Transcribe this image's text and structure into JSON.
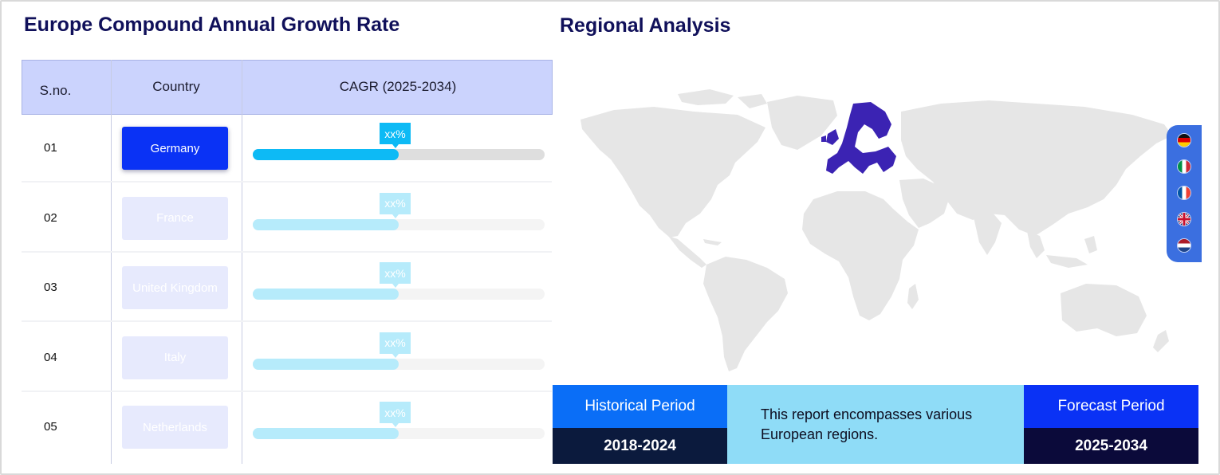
{
  "left": {
    "title": "Europe Compound Annual Growth Rate",
    "columns": [
      "S.no.",
      "Country",
      "CAGR (2025-2034)"
    ],
    "rows": [
      {
        "sno": "01",
        "country": "Germany",
        "cagr_label": "xx%",
        "progress": 0.5,
        "active": true
      },
      {
        "sno": "02",
        "country": "France",
        "cagr_label": "xx%",
        "progress": 0.5,
        "active": false
      },
      {
        "sno": "03",
        "country": "United Kingdom",
        "cagr_label": "xx%",
        "progress": 0.5,
        "active": false
      },
      {
        "sno": "04",
        "country": "Italy",
        "cagr_label": "xx%",
        "progress": 0.5,
        "active": false
      },
      {
        "sno": "05",
        "country": "Netherlands",
        "cagr_label": "xx%",
        "progress": 0.5,
        "active": false
      }
    ]
  },
  "right": {
    "title": "Regional Analysis",
    "flags": [
      "germany-flag-icon",
      "italy-flag-icon",
      "france-flag-icon",
      "uk-flag-icon",
      "netherlands-flag-icon"
    ],
    "historical": {
      "label": "Historical Period",
      "value": "2018-2024"
    },
    "description": "This report encompasses various European regions.",
    "forecast": {
      "label": "Forecast Period",
      "value": "2025-2034"
    }
  },
  "colors": {
    "heading": "#10105a",
    "table_header_bg": "#cbd3fd",
    "active_button": "#0a32f5",
    "inactive_button": "#e7eafd",
    "active_bar": "#0dbaf5",
    "inactive_bar": "#b6ebfb",
    "track_active": "#dedede",
    "track_inactive": "#f4f4f4",
    "map_land": "#e6e6e6",
    "europe_highlight": "#3b23b3",
    "flag_tab": "#3b6fe0",
    "historical_title_bg": "#0a6ef7",
    "forecast_title_bg": "#0a32f5",
    "period_value_bg": "#0b1a3d",
    "description_bg": "#8fdcf7"
  }
}
